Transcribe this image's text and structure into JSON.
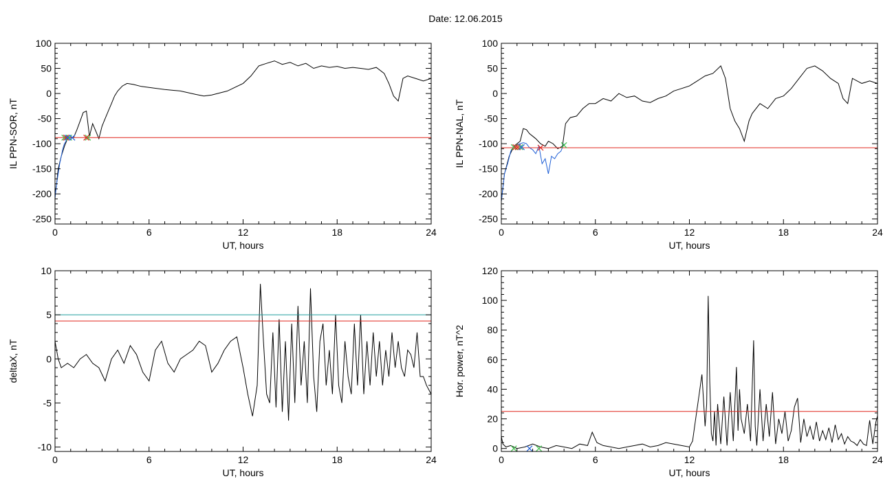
{
  "title": "Date:  12.06.2015",
  "colors": {
    "black": "#000000",
    "red": "#e0241c",
    "blue": "#1f5fd6",
    "green": "#3ec24a",
    "teal": "#1b9c9c"
  },
  "chart_data": [
    {
      "type": "line",
      "xlabel": "UT, hours",
      "ylabel": "IL PPN-SOR, nT",
      "xlim": [
        0,
        24
      ],
      "ylim": [
        -260,
        100
      ],
      "xticks": [
        "0",
        "6",
        "12",
        "18",
        "24"
      ],
      "yticks": [
        "-250",
        "-200",
        "-150",
        "-100",
        "-50",
        "0",
        "50",
        "100"
      ],
      "series": [
        {
          "color": "#000000",
          "x": [
            0,
            0.1,
            0.2,
            0.4,
            0.6,
            0.8,
            1.0,
            1.2,
            1.4,
            1.6,
            1.8,
            2.0,
            2.2,
            2.4,
            2.6,
            2.8,
            3.0,
            3.2,
            3.4,
            3.6,
            3.8,
            4.0,
            4.3,
            4.6,
            5.0,
            5.5,
            6.0,
            7.0,
            8.0,
            9.0,
            9.5,
            10.0,
            11.0,
            12.0,
            12.5,
            13.0,
            13.5,
            14.0,
            14.5,
            15.0,
            15.5,
            16.0,
            16.5,
            17.0,
            17.5,
            18.0,
            18.5,
            19.0,
            19.5,
            20.0,
            20.5,
            21.0,
            21.3,
            21.6,
            21.9,
            22.2,
            22.5,
            23.0,
            23.5,
            24.0
          ],
          "y": [
            -200,
            -180,
            -150,
            -125,
            -105,
            -90,
            -88,
            -87,
            -72,
            -55,
            -38,
            -35,
            -85,
            -60,
            -75,
            -90,
            -65,
            -50,
            -35,
            -20,
            -5,
            5,
            15,
            20,
            18,
            14,
            12,
            8,
            5,
            -2,
            -5,
            -3,
            5,
            20,
            35,
            55,
            60,
            65,
            58,
            62,
            55,
            60,
            50,
            55,
            52,
            54,
            50,
            52,
            50,
            48,
            52,
            40,
            20,
            -5,
            -15,
            30,
            35,
            30,
            25,
            30
          ]
        },
        {
          "color": "#1f5fd6",
          "x": [
            0,
            0.1,
            0.2,
            0.3,
            0.4,
            0.5,
            0.6,
            0.7,
            0.8,
            1.0
          ],
          "y": [
            -210,
            -180,
            -160,
            -140,
            -125,
            -110,
            -100,
            -95,
            -90,
            -88
          ]
        },
        {
          "color": "#e0241c",
          "x": [
            0,
            24
          ],
          "y": [
            -88,
            -88
          ]
        }
      ],
      "markers": [
        {
          "symbol": "x",
          "color": "#3ec24a",
          "x": 0.6,
          "y": -88
        },
        {
          "symbol": "x",
          "color": "#3ec24a",
          "x": 0.9,
          "y": -88
        },
        {
          "symbol": "x",
          "color": "#3ec24a",
          "x": 2.1,
          "y": -88
        },
        {
          "symbol": "x",
          "color": "#e0241c",
          "x": 0.7,
          "y": -88
        },
        {
          "symbol": "x",
          "color": "#e0241c",
          "x": 2.0,
          "y": -88
        },
        {
          "symbol": "x",
          "color": "#1f5fd6",
          "x": 0.8,
          "y": -88
        },
        {
          "symbol": "x",
          "color": "#1f5fd6",
          "x": 1.1,
          "y": -88
        }
      ]
    },
    {
      "type": "line",
      "xlabel": "UT, hours",
      "ylabel": "IL PPN-NAL, nT",
      "xlim": [
        0,
        24
      ],
      "ylim": [
        -260,
        100
      ],
      "xticks": [
        "0",
        "6",
        "12",
        "18",
        "24"
      ],
      "yticks": [
        "-250",
        "-200",
        "-150",
        "-100",
        "-50",
        "0",
        "50",
        "100"
      ],
      "series": [
        {
          "color": "#000000",
          "x": [
            0,
            0.2,
            0.5,
            0.8,
            1.0,
            1.2,
            1.4,
            1.6,
            1.8,
            2.0,
            2.2,
            2.5,
            2.8,
            3.0,
            3.3,
            3.6,
            3.9,
            4.1,
            4.4,
            4.8,
            5.2,
            5.6,
            6.0,
            6.5,
            7.0,
            7.5,
            8.0,
            8.5,
            9.0,
            9.5,
            10.0,
            10.5,
            11.0,
            11.5,
            12.0,
            12.5,
            13.0,
            13.5,
            14.0,
            14.3,
            14.6,
            14.9,
            15.2,
            15.5,
            15.8,
            16.0,
            16.5,
            17.0,
            17.5,
            18.0,
            18.5,
            19.0,
            19.5,
            20.0,
            20.5,
            21.0,
            21.5,
            21.8,
            22.1,
            22.4,
            23.0,
            23.5,
            24.0
          ],
          "y": [
            -215,
            -160,
            -125,
            -105,
            -100,
            -95,
            -70,
            -72,
            -80,
            -85,
            -90,
            -100,
            -105,
            -95,
            -100,
            -110,
            -105,
            -60,
            -48,
            -45,
            -30,
            -20,
            -20,
            -10,
            -15,
            0,
            -8,
            -5,
            -15,
            -18,
            -10,
            -5,
            5,
            10,
            15,
            25,
            35,
            40,
            55,
            30,
            -30,
            -55,
            -70,
            -95,
            -55,
            -40,
            -20,
            -30,
            -10,
            -5,
            10,
            30,
            50,
            55,
            45,
            30,
            20,
            -10,
            -20,
            30,
            20,
            25,
            20
          ]
        },
        {
          "color": "#1f5fd6",
          "x": [
            0,
            0.2,
            0.4,
            0.6,
            0.8,
            1.0,
            1.2,
            1.4,
            1.6,
            1.8,
            2.0,
            2.2,
            2.4,
            2.6,
            2.8,
            3.0,
            3.2,
            3.4,
            3.6,
            3.8,
            4.0
          ],
          "y": [
            -215,
            -160,
            -140,
            -115,
            -105,
            -102,
            -100,
            -98,
            -100,
            -108,
            -112,
            -120,
            -105,
            -140,
            -130,
            -160,
            -125,
            -130,
            -120,
            -115,
            -100
          ]
        },
        {
          "color": "#e0241c",
          "x": [
            0,
            24
          ],
          "y": [
            -108,
            -108
          ]
        }
      ],
      "markers": [
        {
          "symbol": "x",
          "color": "#3ec24a",
          "x": 0.8,
          "y": -107
        },
        {
          "symbol": "x",
          "color": "#3ec24a",
          "x": 1.2,
          "y": -107
        },
        {
          "symbol": "x",
          "color": "#3ec24a",
          "x": 4.0,
          "y": -103
        },
        {
          "symbol": "x",
          "color": "#e0241c",
          "x": 0.9,
          "y": -107
        },
        {
          "symbol": "x",
          "color": "#e0241c",
          "x": 1.05,
          "y": -107
        },
        {
          "symbol": "x",
          "color": "#e0241c",
          "x": 2.5,
          "y": -108
        },
        {
          "symbol": "x",
          "color": "#1f5fd6",
          "x": 1.3,
          "y": -107
        }
      ]
    },
    {
      "type": "line",
      "xlabel": "UT, hours",
      "ylabel": "deltaX, nT",
      "xlim": [
        0,
        24
      ],
      "ylim": [
        -10.5,
        10
      ],
      "xticks": [
        "0",
        "6",
        "12",
        "18",
        "24"
      ],
      "yticks": [
        "-10",
        "-5",
        "0",
        "5",
        "10"
      ],
      "series": [
        {
          "color": "#000000",
          "x": [
            0,
            0.2,
            0.4,
            0.8,
            1.2,
            1.6,
            2.0,
            2.4,
            2.8,
            3.2,
            3.6,
            4.0,
            4.4,
            4.8,
            5.2,
            5.6,
            6.0,
            6.4,
            6.8,
            7.2,
            7.6,
            8.0,
            8.4,
            8.8,
            9.2,
            9.6,
            10.0,
            10.4,
            10.8,
            11.2,
            11.6,
            12.0,
            12.3,
            12.6,
            12.9,
            13.1,
            13.3,
            13.5,
            13.7,
            13.9,
            14.1,
            14.3,
            14.5,
            14.7,
            14.9,
            15.1,
            15.3,
            15.5,
            15.7,
            15.9,
            16.1,
            16.3,
            16.5,
            16.7,
            16.9,
            17.1,
            17.3,
            17.5,
            17.7,
            17.9,
            18.1,
            18.3,
            18.5,
            18.7,
            18.9,
            19.1,
            19.3,
            19.5,
            19.7,
            19.9,
            20.1,
            20.3,
            20.5,
            20.7,
            20.9,
            21.1,
            21.3,
            21.5,
            21.7,
            21.9,
            22.1,
            22.3,
            22.5,
            22.7,
            22.9,
            23.1,
            23.3,
            23.5,
            23.7,
            24.0
          ],
          "y": [
            2,
            0,
            -1,
            -0.5,
            -1,
            0,
            0.5,
            -0.5,
            -1,
            -2.5,
            0,
            1,
            -0.5,
            1.5,
            0.5,
            -1.5,
            -2.5,
            1,
            2,
            -0.5,
            -1.5,
            0,
            0.5,
            1,
            2,
            1.5,
            -1.5,
            -0.5,
            1,
            2,
            2.5,
            -1,
            -4,
            -6.5,
            -3,
            8.5,
            2,
            -4,
            -5,
            3,
            -5.5,
            4.5,
            -6,
            2,
            -7,
            4,
            -5,
            6,
            -3,
            2,
            -5,
            8,
            -2,
            -6,
            2,
            4,
            -3,
            1,
            -4,
            5,
            -3,
            -5,
            2,
            -2,
            -4,
            4,
            -3,
            5,
            -4,
            2,
            -3,
            3,
            -2,
            2,
            -3,
            1,
            -2,
            3,
            -1,
            2,
            -1,
            -2,
            1,
            0.5,
            -1,
            3,
            -2,
            -2,
            -3,
            -4
          ]
        },
        {
          "color": "#1b9c9c",
          "x": [
            0,
            24
          ],
          "y": [
            5,
            5
          ]
        },
        {
          "color": "#e0241c",
          "x": [
            0,
            24
          ],
          "y": [
            4.3,
            4.3
          ]
        }
      ],
      "markers": []
    },
    {
      "type": "line",
      "xlabel": "UT, hours",
      "ylabel": "Hor. power, nT^2",
      "xlim": [
        0,
        24
      ],
      "ylim": [
        -2,
        120
      ],
      "xticks": [
        "0",
        "6",
        "12",
        "18",
        "24"
      ],
      "yticks": [
        "0",
        "20",
        "40",
        "60",
        "80",
        "100",
        "120"
      ],
      "series": [
        {
          "color": "#000000",
          "x": [
            0,
            0.1,
            0.3,
            0.6,
            1.0,
            1.5,
            2.0,
            2.5,
            3.0,
            3.5,
            4.0,
            4.5,
            5.0,
            5.5,
            5.8,
            6.1,
            6.5,
            7.0,
            7.5,
            8.0,
            8.5,
            9.0,
            9.5,
            10.0,
            10.5,
            11.0,
            11.5,
            12.0,
            12.2,
            12.4,
            12.6,
            12.8,
            13.0,
            13.1,
            13.2,
            13.3,
            13.4,
            13.5,
            13.6,
            13.7,
            13.8,
            14.0,
            14.2,
            14.4,
            14.6,
            14.8,
            15.0,
            15.1,
            15.2,
            15.3,
            15.5,
            15.7,
            15.9,
            16.1,
            16.2,
            16.3,
            16.5,
            16.7,
            16.9,
            17.1,
            17.3,
            17.5,
            17.7,
            17.9,
            18.1,
            18.3,
            18.5,
            18.7,
            18.9,
            19.1,
            19.3,
            19.5,
            19.7,
            19.9,
            20.1,
            20.3,
            20.5,
            20.7,
            20.9,
            21.1,
            21.3,
            21.5,
            21.7,
            21.9,
            22.1,
            22.3,
            22.5,
            22.7,
            22.9,
            23.1,
            23.3,
            23.5,
            23.7,
            23.9,
            24.0
          ],
          "y": [
            8,
            3,
            1,
            2,
            0,
            1,
            3,
            1,
            0,
            2,
            1,
            0,
            3,
            2,
            11,
            4,
            2,
            1,
            0,
            1,
            2,
            3,
            1,
            2,
            4,
            3,
            2,
            1,
            5,
            20,
            35,
            50,
            15,
            30,
            103,
            45,
            10,
            5,
            25,
            2,
            30,
            3,
            35,
            2,
            38,
            5,
            55,
            12,
            40,
            20,
            10,
            30,
            5,
            73,
            15,
            2,
            40,
            5,
            30,
            8,
            38,
            3,
            20,
            10,
            25,
            5,
            12,
            28,
            34,
            4,
            20,
            8,
            15,
            6,
            18,
            5,
            12,
            6,
            14,
            4,
            16,
            6,
            10,
            3,
            8,
            5,
            4,
            2,
            6,
            3,
            2,
            19,
            3,
            18,
            22
          ]
        },
        {
          "color": "#e0241c",
          "x": [
            0,
            24
          ],
          "y": [
            25,
            25
          ]
        }
      ],
      "markers": [
        {
          "symbol": "x",
          "color": "#3ec24a",
          "x": 0.8,
          "y": 0
        },
        {
          "symbol": "x",
          "color": "#1f5fd6",
          "x": 1.8,
          "y": 0
        },
        {
          "symbol": "x",
          "color": "#3ec24a",
          "x": 2.4,
          "y": 0
        }
      ]
    }
  ]
}
